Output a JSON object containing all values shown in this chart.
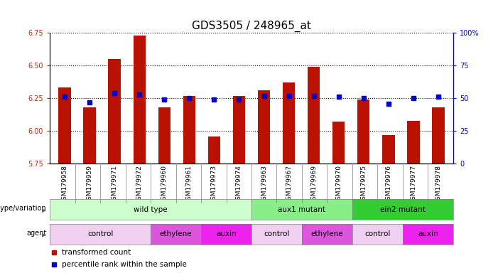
{
  "title": "GDS3505 / 248965_at",
  "samples": [
    "GSM179958",
    "GSM179959",
    "GSM179971",
    "GSM179972",
    "GSM179960",
    "GSM179961",
    "GSM179973",
    "GSM179974",
    "GSM179963",
    "GSM179967",
    "GSM179969",
    "GSM179970",
    "GSM179975",
    "GSM179976",
    "GSM179977",
    "GSM179978"
  ],
  "transformed_count": [
    6.33,
    6.18,
    6.55,
    6.73,
    6.18,
    6.27,
    5.96,
    6.27,
    6.31,
    6.37,
    6.49,
    6.07,
    6.24,
    5.97,
    6.08,
    6.18
  ],
  "percentile_rank": [
    51,
    47,
    54,
    53,
    49,
    50,
    49,
    49,
    52,
    52,
    52,
    51,
    50,
    46,
    50,
    51
  ],
  "y_min": 5.75,
  "y_max": 6.75,
  "y_ticks": [
    5.75,
    6.0,
    6.25,
    6.5,
    6.75
  ],
  "right_y_ticks": [
    0,
    25,
    50,
    75,
    100
  ],
  "right_y_labels": [
    "0",
    "25",
    "50",
    "75",
    "100%"
  ],
  "bar_color": "#bb1100",
  "dot_color": "#0000cc",
  "bar_width": 0.5,
  "genotype_groups": [
    {
      "label": "wild type",
      "start": 0,
      "end": 8,
      "color": "#ccffcc"
    },
    {
      "label": "aux1 mutant",
      "start": 8,
      "end": 12,
      "color": "#88ee88"
    },
    {
      "label": "ein2 mutant",
      "start": 12,
      "end": 16,
      "color": "#33cc33"
    }
  ],
  "agent_groups": [
    {
      "label": "control",
      "start": 0,
      "end": 4,
      "color": "#f0d0f0"
    },
    {
      "label": "ethylene",
      "start": 4,
      "end": 6,
      "color": "#dd55dd"
    },
    {
      "label": "auxin",
      "start": 6,
      "end": 8,
      "color": "#ee22ee"
    },
    {
      "label": "control",
      "start": 8,
      "end": 10,
      "color": "#f0d0f0"
    },
    {
      "label": "ethylene",
      "start": 10,
      "end": 12,
      "color": "#dd55dd"
    },
    {
      "label": "control",
      "start": 12,
      "end": 14,
      "color": "#f0d0f0"
    },
    {
      "label": "auxin",
      "start": 14,
      "end": 16,
      "color": "#ee22ee"
    }
  ],
  "title_fontsize": 11,
  "left_tick_color": "#cc2200",
  "right_tick_color": "#0000cc",
  "legend_bar_label": "transformed count",
  "legend_dot_label": "percentile rank within the sample"
}
